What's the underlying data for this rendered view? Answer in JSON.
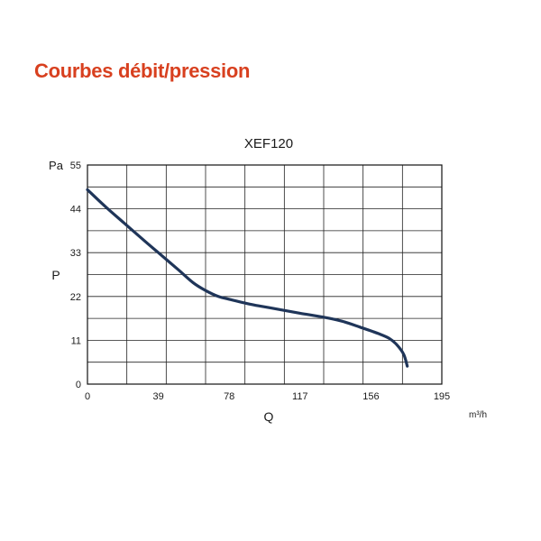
{
  "heading": "Courbes débit/pression",
  "chart_data": {
    "type": "line",
    "title": "XEF120",
    "xlabel": "Q",
    "ylabel": "P",
    "x_unit": "m³/h",
    "y_unit": "Pa",
    "xlim": [
      0,
      195
    ],
    "ylim": [
      0,
      55
    ],
    "x_ticks": [
      "0",
      "39",
      "78",
      "117",
      "156",
      "195"
    ],
    "y_ticks": [
      "0",
      "11",
      "22",
      "33",
      "44",
      "55"
    ],
    "grid": true,
    "legend": "none",
    "line_color": "#1f3559",
    "series": [
      {
        "x": [
          0,
          10,
          20,
          30,
          39,
          50,
          58,
          65,
          72,
          78,
          90,
          100,
          117,
          130,
          140,
          150,
          160,
          166,
          170,
          174,
          176
        ],
        "y": [
          48.8,
          44.5,
          40.5,
          36.5,
          33.0,
          28.7,
          25.5,
          23.5,
          22.0,
          21.3,
          20.0,
          19.2,
          17.8,
          16.8,
          15.8,
          14.3,
          12.7,
          11.5,
          10.0,
          7.5,
          4.5
        ]
      }
    ]
  }
}
